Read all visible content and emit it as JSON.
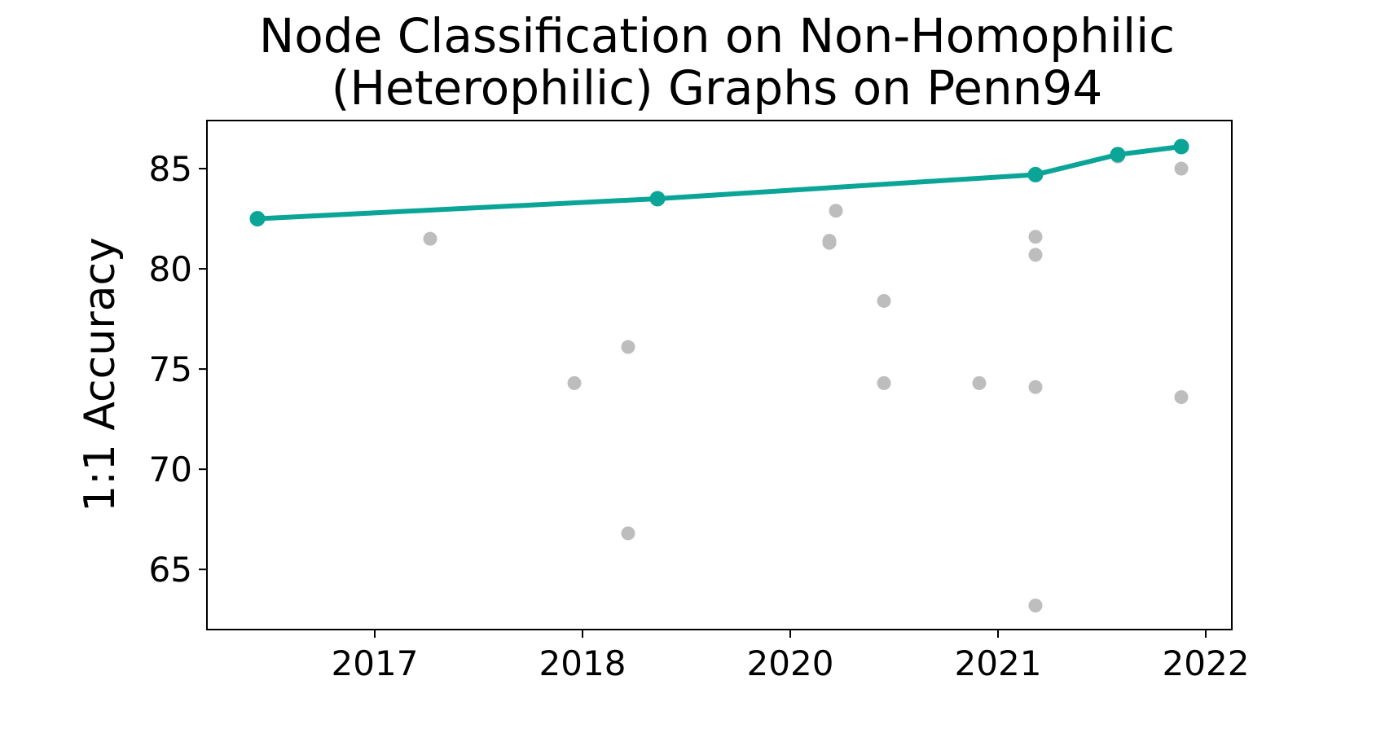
{
  "chart_data": {
    "type": "scatter",
    "title_lines": [
      "Node Classification on Non-Homophilic",
      "(Heterophilic) Graphs on Penn94"
    ],
    "xlabel": "",
    "ylabel": "1:1 Accuracy",
    "x_ticks": [
      "2017",
      "2018",
      "2020",
      "2021",
      "2022"
    ],
    "y_ticks": [
      65,
      70,
      75,
      80,
      85
    ],
    "ylim": [
      62,
      87.4
    ],
    "grid": false,
    "legend": "none",
    "colors": {
      "line": "#0ba598",
      "points": "#bdbdbd"
    },
    "series": [
      {
        "kind": "line",
        "points": [
          {
            "x": "2016",
            "y": 82.5
          },
          {
            "x": "2018-05",
            "y": 83.5
          },
          {
            "x": "2021-03",
            "y": 84.7
          },
          {
            "x": "2021-08",
            "y": 85.7
          },
          {
            "x": "2021-12",
            "y": 86.1
          }
        ]
      },
      {
        "kind": "scatter",
        "points": [
          {
            "x": "2017-04",
            "y": 81.5
          },
          {
            "x": "2017-12",
            "y": 74.3
          },
          {
            "x": "2018-03",
            "y": 76.1
          },
          {
            "x": "2018-03",
            "y": 66.8
          },
          {
            "x": "2020-03",
            "y": 81.4
          },
          {
            "x": "2020-03",
            "y": 81.3
          },
          {
            "x": "2020-04",
            "y": 82.9
          },
          {
            "x": "2020-07",
            "y": 78.4
          },
          {
            "x": "2020-07",
            "y": 74.3
          },
          {
            "x": "2020-11",
            "y": 74.3
          },
          {
            "x": "2021-03",
            "y": 81.6
          },
          {
            "x": "2021-03",
            "y": 80.7
          },
          {
            "x": "2021-03",
            "y": 74.1
          },
          {
            "x": "2021-03",
            "y": 63.2
          },
          {
            "x": "2021-08",
            "y": 85.6
          },
          {
            "x": "2021-12",
            "y": 85.0
          },
          {
            "x": "2021-12",
            "y": 73.6
          }
        ]
      }
    ]
  }
}
